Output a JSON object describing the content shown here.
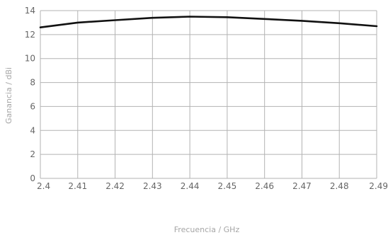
{
  "chart_data": {
    "type": "line",
    "xlabel": "Frecuencia / GHz",
    "ylabel": "Ganancia / dBi",
    "xlim": [
      2.4,
      2.49
    ],
    "ylim": [
      0,
      14
    ],
    "x_ticks": [
      "2.4",
      "2.41",
      "2.42",
      "2.43",
      "2.44",
      "2.45",
      "2.46",
      "2.47",
      "2.48",
      "2.49"
    ],
    "y_ticks": [
      "0",
      "2",
      "4",
      "6",
      "8",
      "10",
      "12",
      "14"
    ],
    "grid": true,
    "series": [
      {
        "x": [
          2.4,
          2.41,
          2.42,
          2.43,
          2.44,
          2.45,
          2.46,
          2.47,
          2.48,
          2.49
        ],
        "y": [
          12.6,
          13.0,
          13.2,
          13.4,
          13.5,
          13.45,
          13.3,
          13.15,
          12.95,
          12.7
        ],
        "color": "#111111"
      }
    ],
    "grid_color": "#b3b3b3"
  }
}
